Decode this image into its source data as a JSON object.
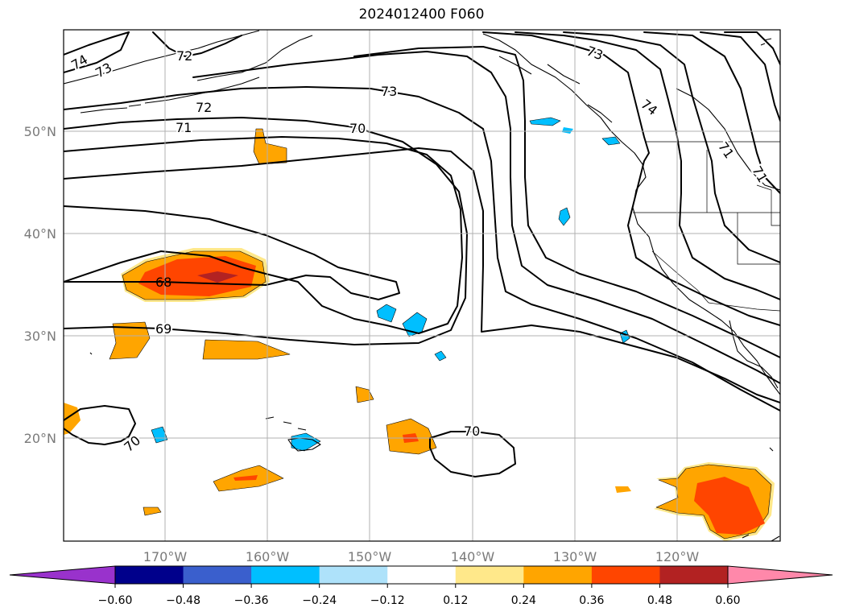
{
  "title": "2024012400 F060",
  "map": {
    "longitude_ticks": [
      "170°W",
      "160°W",
      "150°W",
      "140°W",
      "130°W",
      "120°W"
    ],
    "latitude_ticks": [
      "50°N",
      "40°N",
      "30°N",
      "20°N"
    ],
    "contour_labels": [
      "74",
      "73",
      "72",
      "73",
      "72",
      "71",
      "70",
      "73",
      "74",
      "71",
      "71",
      "68",
      "69",
      "70",
      "70"
    ]
  },
  "colorbar": {
    "tick_labels": [
      "−0.60",
      "−0.48",
      "−0.36",
      "−0.24",
      "−0.12",
      "0.12",
      "0.24",
      "0.36",
      "0.48",
      "0.60"
    ],
    "colors": [
      "#9932cc",
      "#00008b",
      "#3a5fcd",
      "#00bfff",
      "#aee2fa",
      "#ffffff",
      "#ffe88a",
      "#ffa500",
      "#ff4500",
      "#b22222",
      "#ff88aa"
    ]
  }
}
